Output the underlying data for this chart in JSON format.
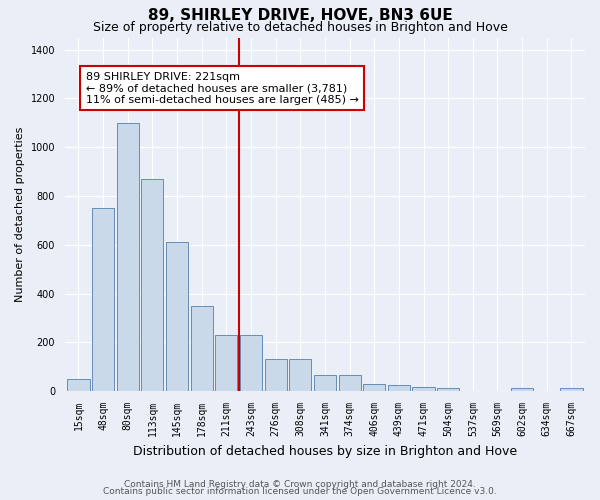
{
  "title1": "89, SHIRLEY DRIVE, HOVE, BN3 6UE",
  "title2": "Size of property relative to detached houses in Brighton and Hove",
  "xlabel": "Distribution of detached houses by size in Brighton and Hove",
  "ylabel": "Number of detached properties",
  "categories": [
    "15sqm",
    "48sqm",
    "80sqm",
    "113sqm",
    "145sqm",
    "178sqm",
    "211sqm",
    "243sqm",
    "276sqm",
    "308sqm",
    "341sqm",
    "374sqm",
    "406sqm",
    "439sqm",
    "471sqm",
    "504sqm",
    "537sqm",
    "569sqm",
    "602sqm",
    "634sqm",
    "667sqm"
  ],
  "values": [
    48,
    750,
    1100,
    870,
    610,
    350,
    230,
    230,
    130,
    130,
    65,
    65,
    28,
    25,
    18,
    13,
    0,
    0,
    13,
    0,
    13
  ],
  "bar_color": "#c9d9ea",
  "bar_edge_color": "#5080b0",
  "vline_color": "#cc0000",
  "annotation_text": "89 SHIRLEY DRIVE: 221sqm\n← 89% of detached houses are smaller (3,781)\n11% of semi-detached houses are larger (485) →",
  "annotation_box_facecolor": "#ffffff",
  "annotation_box_edgecolor": "#cc0000",
  "footer1": "Contains HM Land Registry data © Crown copyright and database right 2024.",
  "footer2": "Contains public sector information licensed under the Open Government Licence v3.0.",
  "bg_color": "#eaeff7",
  "ylim": [
    0,
    1450
  ],
  "yticks": [
    0,
    200,
    400,
    600,
    800,
    1000,
    1200,
    1400
  ],
  "title1_fontsize": 11,
  "title2_fontsize": 9,
  "xlabel_fontsize": 9,
  "ylabel_fontsize": 8,
  "tick_fontsize": 7,
  "footer_fontsize": 6.5,
  "annotation_fontsize": 8
}
